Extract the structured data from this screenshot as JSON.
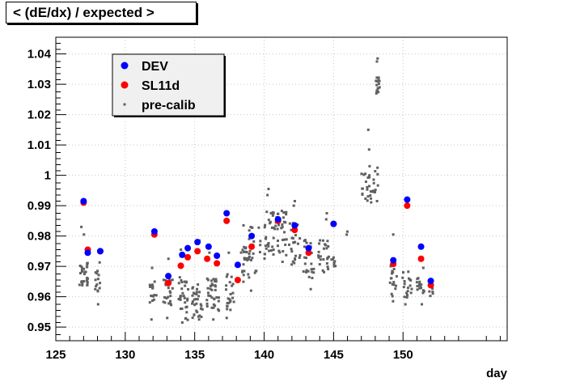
{
  "chart_data": {
    "type": "scatter",
    "title": "< (dE/dx) / expected >",
    "xlabel": "day",
    "ylabel": "",
    "xlim": [
      125,
      157.5
    ],
    "ylim": [
      0.9455,
      1.0455
    ],
    "grid": true,
    "legend_position": "top-left",
    "x_ticks": [
      {
        "v": 125,
        "label": "125"
      },
      {
        "v": 130,
        "label": "130"
      },
      {
        "v": 135,
        "label": "135"
      },
      {
        "v": 140,
        "label": "140"
      },
      {
        "v": 145,
        "label": "145"
      },
      {
        "v": 150,
        "label": "150"
      }
    ],
    "y_ticks": [
      {
        "v": 0.95,
        "label": "0.95"
      },
      {
        "v": 0.96,
        "label": "0.96"
      },
      {
        "v": 0.97,
        "label": "0.97"
      },
      {
        "v": 0.98,
        "label": "0.98"
      },
      {
        "v": 0.99,
        "label": "0.99"
      },
      {
        "v": 1.0,
        "label": "1"
      },
      {
        "v": 1.01,
        "label": "1.01"
      },
      {
        "v": 1.02,
        "label": "1.02"
      },
      {
        "v": 1.03,
        "label": "1.03"
      },
      {
        "v": 1.04,
        "label": "1.04"
      }
    ],
    "series": [
      {
        "name": "DEV",
        "color": "#0000ff",
        "marker": "circle",
        "points": [
          [
            127.0,
            0.9915
          ],
          [
            127.3,
            0.9745
          ],
          [
            128.2,
            0.975
          ],
          [
            132.1,
            0.9815
          ],
          [
            133.1,
            0.9668
          ],
          [
            134.1,
            0.9738
          ],
          [
            134.5,
            0.976
          ],
          [
            135.2,
            0.978
          ],
          [
            136.0,
            0.9765
          ],
          [
            136.6,
            0.9735
          ],
          [
            137.3,
            0.9875
          ],
          [
            138.1,
            0.9705
          ],
          [
            139.1,
            0.98
          ],
          [
            141.0,
            0.9855
          ],
          [
            142.2,
            0.9835
          ],
          [
            143.2,
            0.976
          ],
          [
            145.0,
            0.984
          ],
          [
            149.3,
            0.972
          ],
          [
            150.3,
            0.992
          ],
          [
            151.3,
            0.9765
          ],
          [
            152.0,
            0.9652
          ]
        ]
      },
      {
        "name": "SL11d",
        "color": "#ff0000",
        "marker": "circle",
        "points": [
          [
            127.0,
            0.991
          ],
          [
            127.3,
            0.9755
          ],
          [
            128.2,
            0.975
          ],
          [
            132.1,
            0.9805
          ],
          [
            133.1,
            0.9645
          ],
          [
            134.0,
            0.9702
          ],
          [
            134.5,
            0.973
          ],
          [
            135.2,
            0.975
          ],
          [
            135.9,
            0.9725
          ],
          [
            136.6,
            0.971
          ],
          [
            137.3,
            0.985
          ],
          [
            138.1,
            0.9655
          ],
          [
            139.1,
            0.9765
          ],
          [
            141.0,
            0.985
          ],
          [
            142.2,
            0.982
          ],
          [
            143.2,
            0.9745
          ],
          [
            145.0,
            0.984
          ],
          [
            149.3,
            0.9708
          ],
          [
            150.3,
            0.99
          ],
          [
            151.3,
            0.9725
          ],
          [
            152.0,
            0.9638
          ]
        ]
      },
      {
        "name": "pre-calib",
        "color": "#606060",
        "marker": "square",
        "clusters": [
          {
            "day": 127.0,
            "width": 0.6,
            "range": [
              0.9635,
              0.9715
            ],
            "n": 28,
            "extra": [
              0.983,
              0.9805
            ]
          },
          {
            "day": 128.0,
            "width": 0.4,
            "range": [
              0.961,
              0.9715
            ],
            "n": 14,
            "extra": [
              0.9575
            ]
          },
          {
            "day": 132.0,
            "width": 0.5,
            "range": [
              0.958,
              0.9655
            ],
            "n": 16,
            "extra": [
              0.9525,
              0.9695
            ]
          },
          {
            "day": 133.1,
            "width": 0.7,
            "range": [
              0.957,
              0.9665
            ],
            "n": 24,
            "extra": [
              0.953,
              0.9725
            ]
          },
          {
            "day": 134.2,
            "width": 0.7,
            "range": [
              0.952,
              0.9665
            ],
            "n": 30,
            "extra": [
              0.9515,
              0.9755
            ]
          },
          {
            "day": 135.2,
            "width": 0.8,
            "range": [
              0.953,
              0.9645
            ],
            "n": 30,
            "extra": [
              0.9525,
              0.9785
            ]
          },
          {
            "day": 136.3,
            "width": 0.9,
            "range": [
              0.955,
              0.9665
            ],
            "n": 34,
            "extra": [
              0.9525,
              0.9745
            ]
          },
          {
            "day": 137.5,
            "width": 0.7,
            "range": [
              0.9555,
              0.9675
            ],
            "n": 22,
            "extra": [
              0.953,
              0.9745
            ]
          },
          {
            "day": 138.6,
            "width": 0.6,
            "range": [
              0.964,
              0.9765
            ],
            "n": 18,
            "extra": [
              0.9835
            ]
          },
          {
            "day": 139.3,
            "width": 0.9,
            "range": [
              0.9655,
              0.9835
            ],
            "n": 26,
            "extra": [
              0.962
            ]
          },
          {
            "day": 140.3,
            "width": 0.9,
            "range": [
              0.9725,
              0.9885
            ],
            "n": 30,
            "extra": [
              0.9935,
              0.9955
            ]
          },
          {
            "day": 141.2,
            "width": 0.9,
            "range": [
              0.9735,
              0.9885
            ],
            "n": 30,
            "extra": [
              0.9715
            ]
          },
          {
            "day": 142.2,
            "width": 0.8,
            "range": [
              0.9705,
              0.9855
            ],
            "n": 24,
            "extra": [
              0.9915,
              0.99
            ]
          },
          {
            "day": 143.2,
            "width": 0.8,
            "range": [
              0.966,
              0.9805
            ],
            "n": 24,
            "extra": [
              0.9625
            ]
          },
          {
            "day": 144.3,
            "width": 0.8,
            "range": [
              0.968,
              0.9795
            ],
            "n": 24,
            "extra": [
              0.9875,
              0.9855
            ]
          },
          {
            "day": 145.0,
            "width": 0.3,
            "range": [
              0.969,
              0.9745
            ],
            "n": 8,
            "extra": []
          },
          {
            "day": 146.0,
            "width": 0.2,
            "range": [
              0.98,
              0.9815
            ],
            "n": 2,
            "extra": []
          },
          {
            "day": 147.6,
            "width": 1.2,
            "range": [
              0.991,
              1.0015
            ],
            "n": 30,
            "extra": [
              1.015,
              1.0085,
              1.003
            ]
          },
          {
            "day": 148.2,
            "width": 0.3,
            "range": [
              1.026,
              1.0325
            ],
            "n": 16,
            "extra": [
              1.0385,
              1.0375,
              1.0025,
              0.9915
            ]
          },
          {
            "day": 149.3,
            "width": 0.5,
            "range": [
              0.96,
              0.9705
            ],
            "n": 18,
            "extra": [
              0.9805,
              0.9585
            ]
          },
          {
            "day": 150.3,
            "width": 0.7,
            "range": [
              0.9595,
              0.9685
            ],
            "n": 18,
            "extra": [
              0.9575
            ]
          },
          {
            "day": 151.3,
            "width": 0.6,
            "range": [
              0.9605,
              0.9665
            ],
            "n": 16,
            "extra": [
              0.9575,
              0.9695
            ]
          },
          {
            "day": 152.0,
            "width": 0.3,
            "range": [
              0.958,
              0.9655
            ],
            "n": 10,
            "extra": []
          }
        ]
      }
    ]
  }
}
